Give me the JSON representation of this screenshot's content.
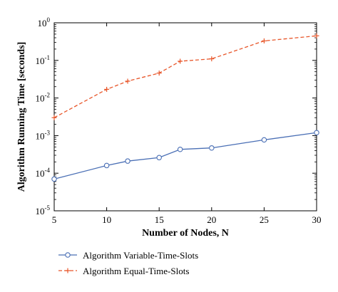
{
  "chart_data": {
    "type": "line",
    "xlabel": "Number of Nodes, N",
    "ylabel": "Algorithm Running Time [seconds]",
    "xlim": [
      5,
      30
    ],
    "ylim": [
      1e-05,
      1
    ],
    "yscale": "log",
    "grid": false,
    "legend_position": "bottom-left",
    "x_ticks": [
      5,
      10,
      15,
      20,
      25,
      30
    ],
    "x_tick_labels": [
      "5",
      "10",
      "15",
      "20",
      "25",
      "30"
    ],
    "y_ticks": [
      1e-05,
      0.0001,
      0.001,
      0.01,
      0.1,
      1
    ],
    "y_tick_labels": [
      {
        "base": "10",
        "exp": "-5"
      },
      {
        "base": "10",
        "exp": "-4"
      },
      {
        "base": "10",
        "exp": "-3"
      },
      {
        "base": "10",
        "exp": "-2"
      },
      {
        "base": "10",
        "exp": "-1"
      },
      {
        "base": "10",
        "exp": "0"
      }
    ],
    "series": [
      {
        "name": "Algorithm Variable-Time-Slots",
        "color": "#4a6fb5",
        "line_style": "solid",
        "marker": "circle",
        "x": [
          5,
          10,
          12,
          15,
          17,
          20,
          25,
          30
        ],
        "y": [
          7e-05,
          0.00016,
          0.00021,
          0.00026,
          0.00043,
          0.00047,
          0.00077,
          0.0012
        ]
      },
      {
        "name": "Algorithm Equal-Time-Slots",
        "color": "#e8562a",
        "line_style": "dashed",
        "marker": "plus",
        "x": [
          5,
          10,
          12,
          15,
          17,
          20,
          25,
          30
        ],
        "y": [
          0.003,
          0.017,
          0.028,
          0.046,
          0.095,
          0.11,
          0.33,
          0.45
        ]
      }
    ]
  }
}
